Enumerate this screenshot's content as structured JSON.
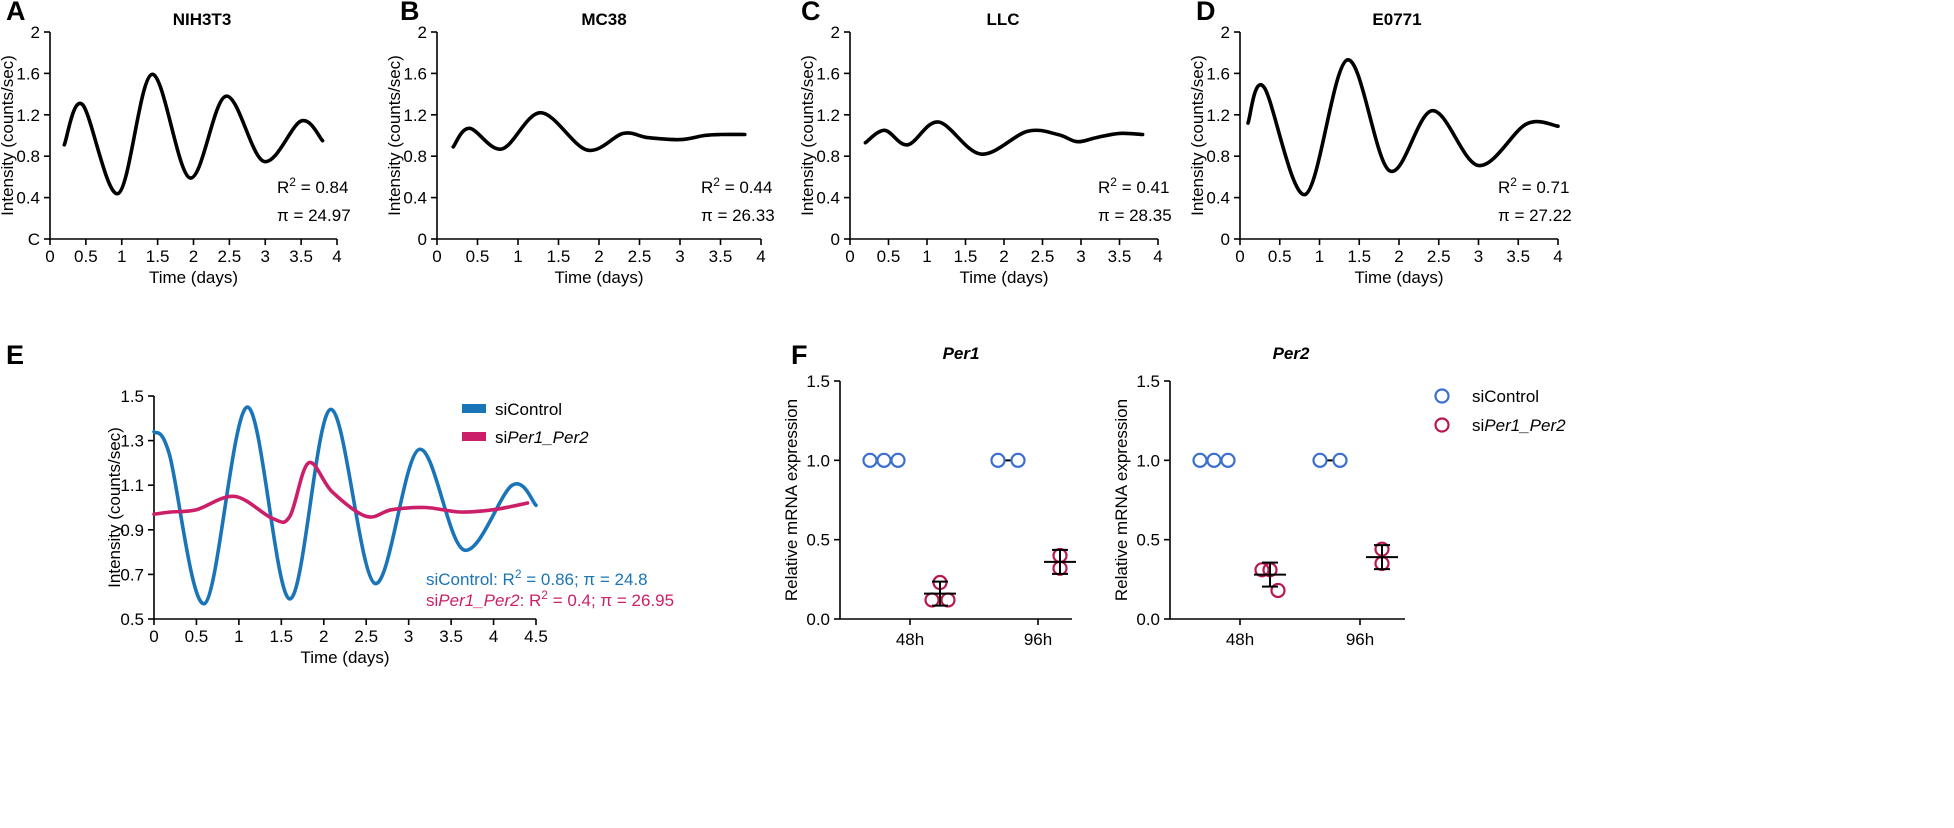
{
  "colors": {
    "black": "#000000",
    "si_control": "#1a75b8",
    "si_per": "#cc1f6a",
    "dot_control": "#3a6fd0",
    "dot_per": "#b8184e"
  },
  "chart_data": [
    {
      "id": "A",
      "type": "line",
      "panel_letter": "A",
      "title": "NIH3T3",
      "xlabel": "Time (days)",
      "ylabel": "Intensity (counts/sec)",
      "xlim": [
        0,
        4
      ],
      "ylim": [
        0,
        2
      ],
      "xticks": [
        "0",
        "0.5",
        "1",
        "1.5",
        "2",
        "2.5",
        "3",
        "3.5",
        "4"
      ],
      "yticks": [
        "C",
        "0.4",
        "0.8",
        "1.2",
        "1.6",
        "2"
      ],
      "series": [
        {
          "name": "NIH3T3",
          "color": "#000000",
          "x": [
            0.2,
            0.45,
            0.95,
            1.42,
            1.95,
            2.45,
            2.98,
            3.5,
            3.8
          ],
          "y": [
            0.91,
            1.3,
            0.44,
            1.59,
            0.59,
            1.38,
            0.75,
            1.14,
            0.95
          ]
        }
      ],
      "stats": {
        "r2_label": "R",
        "r2_sup": "2",
        "r2_value": "=  0.84",
        "tau": "π = 24.97"
      }
    },
    {
      "id": "B",
      "type": "line",
      "panel_letter": "B",
      "title": "MC38",
      "xlabel": "Time (days)",
      "ylabel": "Intensity (counts/sec)",
      "xlim": [
        0,
        4
      ],
      "ylim": [
        0,
        2
      ],
      "xticks": [
        "0",
        "0.5",
        "1",
        "1.5",
        "2",
        "2.5",
        "3",
        "3.5",
        "4"
      ],
      "yticks": [
        "0",
        "0.4",
        "0.8",
        "1.2",
        "1.6",
        "2"
      ],
      "series": [
        {
          "name": "MC38",
          "color": "#000000",
          "x": [
            0.2,
            0.4,
            0.8,
            1.28,
            1.85,
            2.3,
            2.6,
            3.0,
            3.3,
            3.5,
            3.8
          ],
          "y": [
            0.89,
            1.07,
            0.87,
            1.22,
            0.86,
            1.02,
            0.98,
            0.96,
            1.0,
            1.01,
            1.01
          ]
        }
      ],
      "stats": {
        "r2_label": "R",
        "r2_sup": "2",
        "r2_value": "=  0.44",
        "tau": "π = 26.33"
      }
    },
    {
      "id": "C",
      "type": "line",
      "panel_letter": "C",
      "title": "LLC",
      "xlabel": "Time (days)",
      "ylabel": "Intensity (counts/sec)",
      "xlim": [
        0,
        4
      ],
      "ylim": [
        0,
        2
      ],
      "xticks": [
        "0",
        "0.5",
        "1",
        "1.5",
        "2",
        "2.5",
        "3",
        "3.5",
        "4"
      ],
      "yticks": [
        "0",
        "0.4",
        "0.8",
        "1.2",
        "1.6",
        "2"
      ],
      "series": [
        {
          "name": "LLC",
          "color": "#000000",
          "x": [
            0.2,
            0.45,
            0.75,
            1.15,
            1.7,
            2.3,
            2.7,
            2.95,
            3.2,
            3.5,
            3.8
          ],
          "y": [
            0.93,
            1.05,
            0.91,
            1.13,
            0.82,
            1.04,
            1.01,
            0.94,
            0.98,
            1.02,
            1.01
          ]
        }
      ],
      "stats": {
        "r2_label": "R",
        "r2_sup": "2",
        "r2_value": "=  0.41",
        "tau": "π = 28.35"
      }
    },
    {
      "id": "D",
      "type": "line",
      "panel_letter": "D",
      "title": "E0771",
      "xlabel": "Time (days)",
      "ylabel": "Intensity (counts/sec)",
      "xlim": [
        0,
        4
      ],
      "ylim": [
        0,
        2
      ],
      "xticks": [
        "0",
        "0.5",
        "1",
        "1.5",
        "2",
        "2.5",
        "3",
        "3.5",
        "4"
      ],
      "yticks": [
        "0",
        "0.4",
        "0.8",
        "1.2",
        "1.6",
        "2"
      ],
      "series": [
        {
          "name": "E0771",
          "color": "#000000",
          "x": [
            0.1,
            0.3,
            0.82,
            1.35,
            1.88,
            2.42,
            3.0,
            3.6,
            4.0
          ],
          "y": [
            1.12,
            1.47,
            0.43,
            1.73,
            0.66,
            1.24,
            0.71,
            1.11,
            1.09
          ]
        }
      ],
      "stats": {
        "r2_label": "R",
        "r2_sup": "2",
        "r2_value": "=  0.71",
        "tau": "π = 27.22"
      }
    },
    {
      "id": "E",
      "type": "line",
      "panel_letter": "E",
      "title": "",
      "xlabel": "Time (days)",
      "ylabel": "Intensity (counts/sec)",
      "xlim": [
        0,
        4.5
      ],
      "ylim": [
        0.5,
        1.5
      ],
      "xticks": [
        "0",
        "0.5",
        "1",
        "1.5",
        "2",
        "2.5",
        "3",
        "3.5",
        "4",
        "4.5"
      ],
      "yticks": [
        "0.5",
        "0.7",
        "0.9",
        "1.1",
        "1.3",
        "1.5"
      ],
      "series": [
        {
          "name": "siControl",
          "color": "#1a75b8",
          "x": [
            0,
            0.18,
            0.6,
            1.1,
            1.6,
            2.08,
            2.6,
            3.12,
            3.65,
            4.22,
            4.5
          ],
          "y": [
            1.34,
            1.24,
            0.57,
            1.45,
            0.59,
            1.44,
            0.66,
            1.26,
            0.81,
            1.1,
            1.01
          ]
        },
        {
          "name": "siPer1_Per2",
          "color": "#cc1f6a",
          "x": [
            0,
            0.2,
            0.5,
            0.95,
            1.4,
            1.6,
            1.82,
            2.1,
            2.5,
            2.8,
            3.2,
            3.6,
            4.0,
            4.4
          ],
          "y": [
            0.97,
            0.98,
            0.99,
            1.05,
            0.95,
            0.96,
            1.2,
            1.07,
            0.96,
            0.99,
            1.0,
            0.98,
            0.99,
            1.02
          ]
        }
      ],
      "legend": [
        {
          "pre": "siControl",
          "italic": "",
          "post": "",
          "color": "#1a75b8"
        },
        {
          "pre": "si",
          "italic": "Per1_Per2",
          "post": "",
          "color": "#cc1f6a"
        }
      ],
      "stats": [
        {
          "pre": "siControl",
          "italic": "",
          "post": ": R",
          "sup": "2",
          "tail": " = 0.86; π = 24.8",
          "color": "#1a75b8"
        },
        {
          "pre": "si",
          "italic": "Per1_Per2",
          "post": ": R",
          "sup": "2",
          "tail": " = 0.4; π = 26.95",
          "color": "#cc1f6a"
        }
      ]
    },
    {
      "id": "F1",
      "type": "scatter",
      "panel_letter": "F",
      "title": "Per1",
      "xlabel": "",
      "ylabel": "Relative mRNA expression",
      "ylim": [
        0,
        1.5
      ],
      "yticks": [
        "0.0",
        "0.5",
        "1.0",
        "1.5"
      ],
      "categories": [
        "48h",
        "96h"
      ],
      "series": [
        {
          "name": "siControl",
          "color": "#3a6fd0",
          "groups": [
            [
              1.0,
              1.0,
              1.0
            ],
            [
              1.0,
              1.0
            ]
          ],
          "means": [
            null,
            null
          ]
        },
        {
          "name": "siPer1_Per2",
          "color": "#b8184e",
          "groups": [
            [
              0.23,
              0.12,
              0.12
            ],
            [
              0.4,
              0.32
            ]
          ],
          "means": [
            0.16,
            0.36
          ]
        }
      ]
    },
    {
      "id": "F2",
      "type": "scatter",
      "panel_letter": "",
      "title": "Per2",
      "xlabel": "",
      "ylabel": "Relative mRNA expression",
      "ylim": [
        0,
        1.5
      ],
      "yticks": [
        "0.0",
        "0.5",
        "1.0",
        "1.5"
      ],
      "categories": [
        "48h",
        "96h"
      ],
      "series": [
        {
          "name": "siControl",
          "color": "#3a6fd0",
          "groups": [
            [
              1.0,
              1.0,
              1.0
            ],
            [
              1.0,
              1.0
            ]
          ],
          "means": [
            null,
            null
          ]
        },
        {
          "name": "siPer1_Per2",
          "color": "#b8184e",
          "groups": [
            [
              0.31,
              0.31,
              0.18
            ],
            [
              0.44,
              0.35
            ]
          ],
          "means": [
            0.28,
            0.39
          ]
        }
      ],
      "legend": [
        {
          "pre": "siControl",
          "italic": "",
          "post": "",
          "color": "#3a6fd0"
        },
        {
          "pre": "si",
          "italic": "Per1_Per2",
          "post": "",
          "color": "#b8184e"
        }
      ]
    }
  ]
}
